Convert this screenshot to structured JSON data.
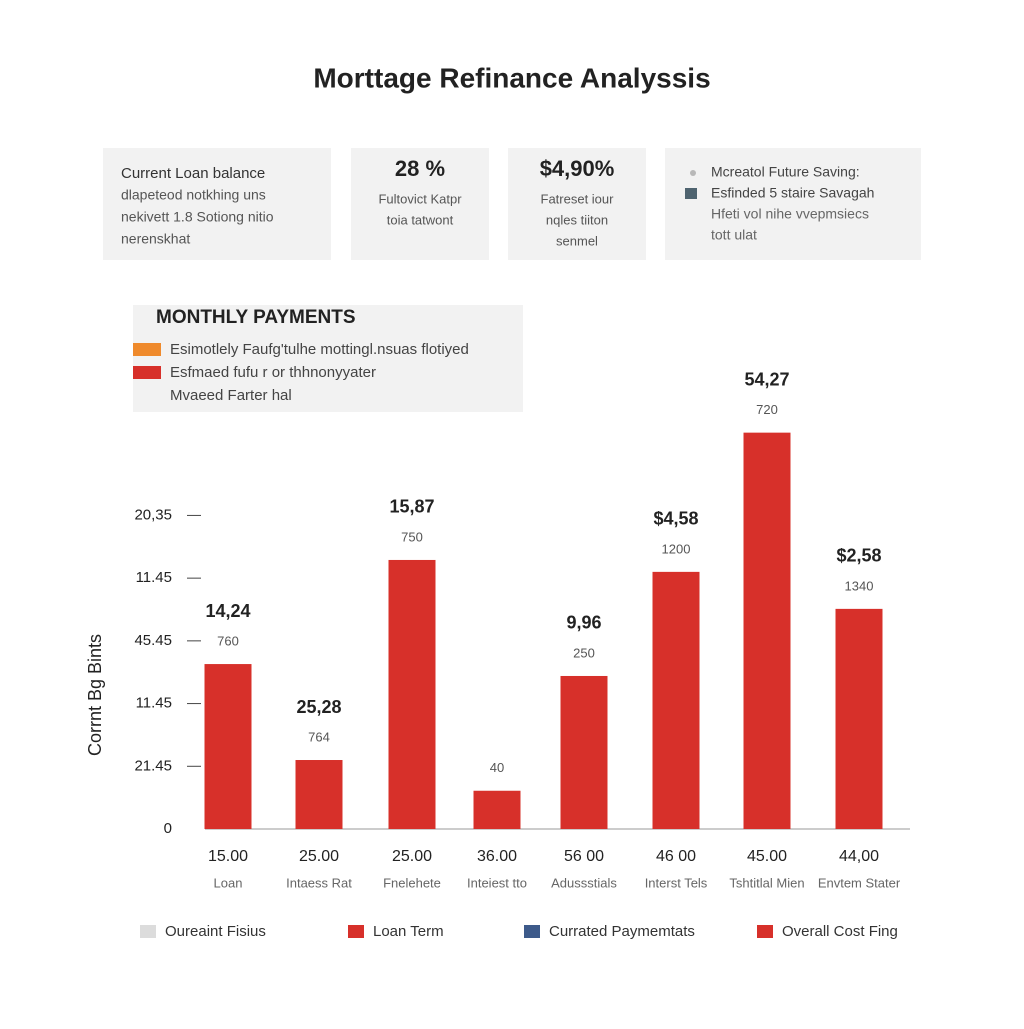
{
  "chart_data": {
    "type": "bar",
    "title": "Morttage Refinance Analyssis",
    "cards": [
      {
        "lines": [
          "Current Loan balance",
          "dlapeteod notkhing uns",
          "nekivett 1.8 Sotiong nitio",
          "nerenskhat"
        ]
      },
      {
        "headline": "28 %",
        "lines": [
          "Fultovict Katpr",
          "toia tatwont"
        ]
      },
      {
        "headline": "$4,90%",
        "lines": [
          "Fatreset iour",
          "nqles tiiton",
          "senmel"
        ]
      },
      {
        "items": [
          {
            "text": "Mcreatol Future Saving:",
            "color": "#b8b8b8"
          },
          {
            "text": "Esfinded 5 staire Savagah",
            "color": "#4f6470"
          },
          {
            "text": "Hfeti vol nihe vvepmsiecs",
            "color": null
          },
          {
            "text": "tott ulat",
            "color": null
          }
        ]
      }
    ],
    "legend_box": {
      "title": "MONTHLY PAYMENTS",
      "items": [
        {
          "text": "Esimotlely Faufg'tulhe mottingl.nsuas flotiyed",
          "color": "#ef8a2c"
        },
        {
          "text": "Esfmaed fufu r or thhnonyyater",
          "color": "#d7302a"
        },
        {
          "text": "Mvaeed Farter hal",
          "color": null
        }
      ]
    },
    "y_label": "Corrnt Bg Bints",
    "ylim": [
      0,
      7
    ],
    "yticks": [
      0,
      {
        "value": 1,
        "label": "21.45"
      },
      {
        "value": 2,
        "label": "11.45"
      },
      {
        "value": 3,
        "label": "45.45"
      },
      {
        "value": 4,
        "label": "11.45"
      },
      {
        "value": 5,
        "label": "20,35"
      }
    ],
    "x_labels": [
      "15.00",
      "25.00",
      "25.00",
      "36.00",
      "56 00",
      "46 00",
      "45.00",
      "44,00"
    ],
    "categories": [
      "Loan",
      "Intaess Rat",
      "Fnelehete",
      "Inteiest tto",
      "Adussstials",
      "Interst Tels",
      "Tshtitlal Mien",
      "Envtem Stater"
    ],
    "values": [
      2.63,
      1.1,
      4.29,
      0.61,
      2.44,
      4.1,
      6.32,
      3.51
    ],
    "top_labels": [
      "14,24",
      "25,28",
      "15,87",
      null,
      "9,96",
      "$4,58",
      "54,27",
      "$2,58"
    ],
    "sub_labels": [
      "760",
      "764",
      "750",
      "40",
      "250",
      "1200",
      "720",
      "1340"
    ],
    "color": "#d7302a",
    "legend": [
      {
        "name": "Oureaint Fisius",
        "color": "#dcdcdc"
      },
      {
        "name": "Loan Term",
        "color": "#d7302a"
      },
      {
        "name": "Currated Paymemtats",
        "color": "#3d5a8a"
      },
      {
        "name": "Overall Cost Fing",
        "color": "#d7302a"
      }
    ]
  }
}
